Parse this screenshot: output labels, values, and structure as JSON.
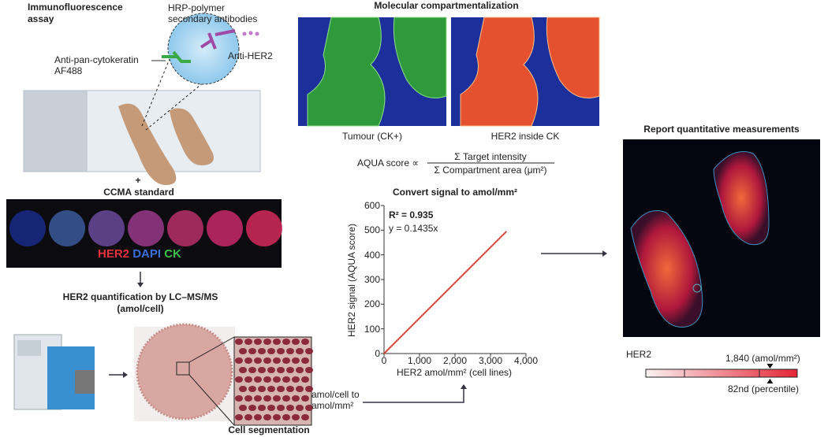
{
  "panel_if": {
    "title_line1": "Immunofluorescence",
    "title_line2": "assay",
    "label_hrp_line1": "HRP-polymer",
    "label_hrp_line2": "secondary antibodies",
    "label_ck_line1": "Anti-pan-cytokeratin",
    "label_ck_line2": "AF488",
    "label_her2": "Anti-HER2"
  },
  "panel_ccma": {
    "plus": "+",
    "title": "CCMA standard",
    "legend_her2": "HER2",
    "legend_dapi": "DAPI",
    "legend_ck": "CK",
    "colors": {
      "her2": "#e8323c",
      "dapi": "#3b6fd8",
      "ck": "#3fbf4a"
    }
  },
  "panel_lcms": {
    "title_line1": "HER2 quantification by LC–MS/MS",
    "title_line2": "(amol/cell)",
    "cell_segmentation": "Cell segmentation",
    "conversion_line1": "amol/cell to",
    "conversion_line2": "amol/mm²"
  },
  "panel_compartment": {
    "title": "Molecular compartmentalization",
    "caption_left": "Tumour (CK+)",
    "caption_right": "HER2 inside CK",
    "formula_lhs": "AQUA score ∝",
    "formula_numerator": "Σ Target intensity",
    "formula_denominator": "Σ Compartment area (μm²)"
  },
  "chart_data": {
    "type": "line",
    "title": "Convert signal to amol/mm²",
    "xlabel": "HER2 amol/mm² (cell lines)",
    "ylabel": "HER2 signal (AQUA score)",
    "xlim": [
      0,
      4000
    ],
    "ylim": [
      0,
      600
    ],
    "xticks": [
      "0",
      "1,000",
      "2,000",
      "3,000",
      "4,000"
    ],
    "yticks": [
      "0",
      "100",
      "200",
      "300",
      "400",
      "500",
      "600"
    ],
    "annotation_r2": "R² = 0.935",
    "annotation_eq": "y = 0.1435x",
    "series": [
      {
        "x": [
          0,
          3450
        ],
        "y": [
          0,
          495
        ],
        "color": "#d9443f"
      }
    ],
    "grid": false
  },
  "panel_report": {
    "title": "Report quantitative measurements",
    "marker_label": "HER2",
    "value_label": "1,840 (amol/mm²)",
    "percentile_label": "82nd (percentile)",
    "percentile": 82
  }
}
